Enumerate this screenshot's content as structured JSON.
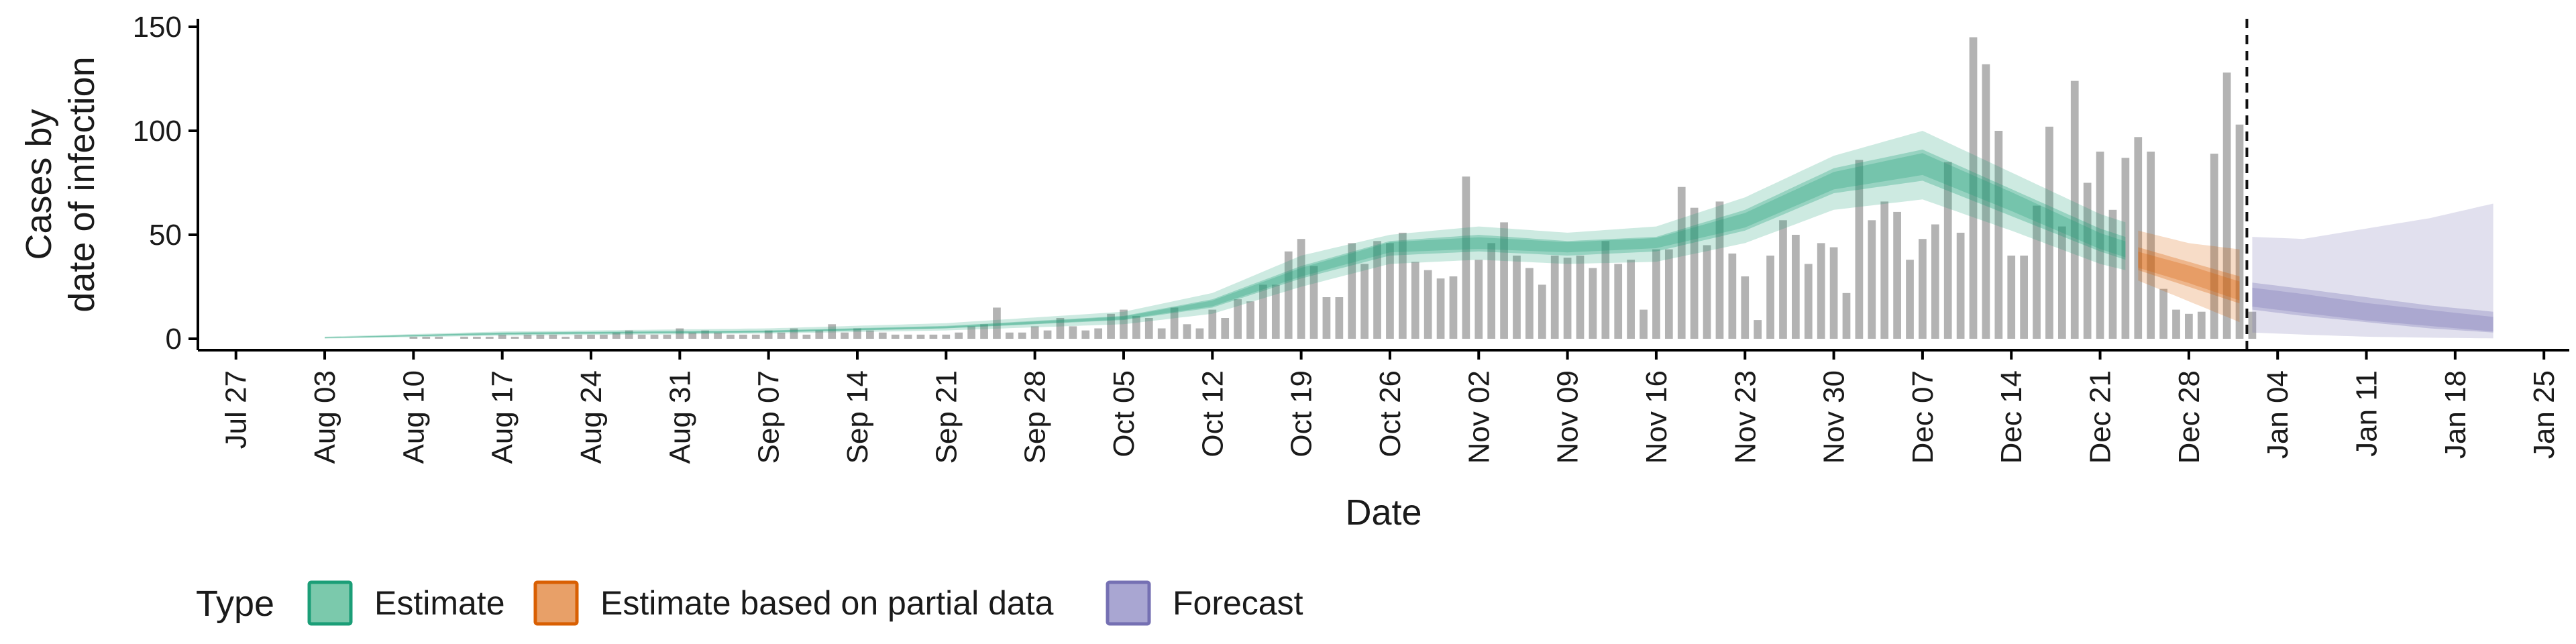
{
  "chart_data": {
    "type": "bar",
    "xlabel": "Date",
    "ylabel_lines": [
      "Cases by",
      "date of infection"
    ],
    "ylim": [
      0,
      150
    ],
    "yticks": [
      0,
      50,
      100,
      150
    ],
    "x_domain": [
      "2020-07-24",
      "2021-01-27"
    ],
    "x_ticks": [
      {
        "date": "2020-07-27",
        "label": "Jul 27"
      },
      {
        "date": "2020-08-03",
        "label": "Aug 03"
      },
      {
        "date": "2020-08-10",
        "label": "Aug 10"
      },
      {
        "date": "2020-08-17",
        "label": "Aug 17"
      },
      {
        "date": "2020-08-24",
        "label": "Aug 24"
      },
      {
        "date": "2020-08-31",
        "label": "Aug 31"
      },
      {
        "date": "2020-09-07",
        "label": "Sep 07"
      },
      {
        "date": "2020-09-14",
        "label": "Sep 14"
      },
      {
        "date": "2020-09-21",
        "label": "Sep 21"
      },
      {
        "date": "2020-09-28",
        "label": "Sep 28"
      },
      {
        "date": "2020-10-05",
        "label": "Oct 05"
      },
      {
        "date": "2020-10-12",
        "label": "Oct 12"
      },
      {
        "date": "2020-10-19",
        "label": "Oct 19"
      },
      {
        "date": "2020-10-26",
        "label": "Oct 26"
      },
      {
        "date": "2020-11-02",
        "label": "Nov 02"
      },
      {
        "date": "2020-11-09",
        "label": "Nov 09"
      },
      {
        "date": "2020-11-16",
        "label": "Nov 16"
      },
      {
        "date": "2020-11-23",
        "label": "Nov 23"
      },
      {
        "date": "2020-11-30",
        "label": "Nov 30"
      },
      {
        "date": "2020-12-07",
        "label": "Dec 07"
      },
      {
        "date": "2020-12-14",
        "label": "Dec 14"
      },
      {
        "date": "2020-12-21",
        "label": "Dec 21"
      },
      {
        "date": "2020-12-28",
        "label": "Dec 28"
      },
      {
        "date": "2021-01-04",
        "label": "Jan 04"
      },
      {
        "date": "2021-01-11",
        "label": "Jan 11"
      },
      {
        "date": "2021-01-18",
        "label": "Jan 18"
      },
      {
        "date": "2021-01-25",
        "label": "Jan 25"
      }
    ],
    "forecast_start": "2021-01-02",
    "bars": {
      "start_date": "2020-08-03",
      "values": [
        0,
        0,
        0,
        0,
        0,
        0,
        0,
        1,
        1,
        1,
        0,
        1,
        1,
        1,
        2,
        1,
        2,
        2,
        2,
        1,
        2,
        2,
        2,
        3,
        4,
        2,
        2,
        2,
        5,
        3,
        4,
        3,
        2,
        2,
        2,
        4,
        3,
        5,
        2,
        4,
        7,
        3,
        5,
        4,
        3,
        2,
        2,
        2,
        2,
        2,
        3,
        6,
        7,
        15,
        3,
        3,
        6,
        4,
        10,
        6,
        4,
        5,
        12,
        14,
        11,
        10,
        5,
        15,
        7,
        5,
        14,
        10,
        19,
        18,
        26,
        26,
        42,
        48,
        35,
        20,
        20,
        46,
        36,
        47,
        46,
        51,
        37,
        33,
        29,
        30,
        78,
        38,
        46,
        56,
        40,
        34,
        26,
        40,
        39,
        40,
        34,
        47,
        36,
        38,
        14,
        43,
        43,
        73,
        63,
        45,
        66,
        41,
        30,
        9,
        40,
        57,
        50,
        36,
        46,
        44,
        22,
        86,
        57,
        66,
        61,
        38,
        48,
        55,
        85,
        51,
        145,
        132,
        100,
        40,
        40,
        64,
        102,
        54,
        124,
        75,
        90,
        62,
        87,
        97,
        90,
        24,
        14,
        12,
        13,
        89,
        128,
        103,
        13
      ],
      "color": "#b3b3b3"
    },
    "series": [
      {
        "name": "Estimate",
        "color": "#1b9e77",
        "start_date": "2020-08-03",
        "end_date": "2020-12-23",
        "knots": [
          {
            "date": "2020-08-03",
            "median": 0.5,
            "q25": 0.3,
            "q75": 0.7,
            "q5": 0.1,
            "q95": 1.0
          },
          {
            "date": "2020-08-17",
            "median": 2.5,
            "q25": 2.0,
            "q75": 3.0,
            "q5": 1.5,
            "q95": 3.5
          },
          {
            "date": "2020-09-07",
            "median": 3.5,
            "q25": 3.0,
            "q75": 4.0,
            "q5": 2.5,
            "q95": 5.0
          },
          {
            "date": "2020-09-21",
            "median": 5.5,
            "q25": 5.0,
            "q75": 6.2,
            "q5": 4.0,
            "q95": 7.5
          },
          {
            "date": "2020-10-05",
            "median": 10,
            "q25": 9,
            "q75": 11,
            "q5": 7,
            "q95": 13
          },
          {
            "date": "2020-10-12",
            "median": 17,
            "q25": 15,
            "q75": 19,
            "q5": 12,
            "q95": 22
          },
          {
            "date": "2020-10-19",
            "median": 32,
            "q25": 29,
            "q75": 35,
            "q5": 25,
            "q95": 40
          },
          {
            "date": "2020-10-26",
            "median": 44,
            "q25": 40,
            "q75": 47,
            "q5": 36,
            "q95": 50
          },
          {
            "date": "2020-11-02",
            "median": 46,
            "q25": 42,
            "q75": 50,
            "q5": 38,
            "q95": 54
          },
          {
            "date": "2020-11-09",
            "median": 44,
            "q25": 40,
            "q75": 47,
            "q5": 36,
            "q95": 51
          },
          {
            "date": "2020-11-16",
            "median": 46,
            "q25": 42,
            "q75": 49,
            "q5": 37,
            "q95": 54
          },
          {
            "date": "2020-11-23",
            "median": 57,
            "q25": 52,
            "q75": 62,
            "q5": 46,
            "q95": 68
          },
          {
            "date": "2020-11-30",
            "median": 76,
            "q25": 70,
            "q75": 82,
            "q5": 62,
            "q95": 88
          },
          {
            "date": "2020-12-07",
            "median": 84,
            "q25": 76,
            "q75": 91,
            "q5": 67,
            "q95": 100
          },
          {
            "date": "2020-12-14",
            "median": 66,
            "q25": 59,
            "q75": 72,
            "q5": 52,
            "q95": 80
          },
          {
            "date": "2020-12-21",
            "median": 47,
            "q25": 42,
            "q75": 53,
            "q5": 36,
            "q95": 60
          },
          {
            "date": "2020-12-23",
            "median": 43,
            "q25": 38,
            "q75": 49,
            "q5": 33,
            "q95": 56
          }
        ]
      },
      {
        "name": "Estimate based on partial data",
        "color": "#d95f02",
        "start_date": "2020-12-24",
        "end_date": "2021-01-01",
        "knots": [
          {
            "date": "2020-12-24",
            "median": 38,
            "q25": 33,
            "q75": 44,
            "q5": 28,
            "q95": 52
          },
          {
            "date": "2020-12-28",
            "median": 31,
            "q25": 25,
            "q75": 37,
            "q5": 18,
            "q95": 46
          },
          {
            "date": "2021-01-01",
            "median": 23,
            "q25": 17,
            "q75": 30,
            "q5": 8,
            "q95": 43
          }
        ]
      },
      {
        "name": "Forecast",
        "color": "#7570b3",
        "start_date": "2021-01-02",
        "end_date": "2021-01-21",
        "knots": [
          {
            "date": "2021-01-02",
            "median": 20,
            "q25": 14,
            "q75": 27,
            "q5": 3,
            "q95": 49
          },
          {
            "date": "2021-01-06",
            "median": 17,
            "q25": 11,
            "q75": 24,
            "q5": 2,
            "q95": 48
          },
          {
            "date": "2021-01-11",
            "median": 13,
            "q25": 8,
            "q75": 20,
            "q5": 1,
            "q95": 53
          },
          {
            "date": "2021-01-16",
            "median": 10,
            "q25": 5,
            "q75": 16,
            "q5": 0.5,
            "q95": 58
          },
          {
            "date": "2021-01-21",
            "median": 7,
            "q25": 3,
            "q75": 13,
            "q5": 0.2,
            "q95": 65
          }
        ]
      }
    ],
    "legend": {
      "title": "Type",
      "position": "bottom",
      "items": [
        {
          "label": "Estimate",
          "color": "#1b9e77",
          "fill": "#7bc9ac"
        },
        {
          "label": "Estimate based on partial data",
          "color": "#d95f02",
          "fill": "#e8a068"
        },
        {
          "label": "Forecast",
          "color": "#7570b3",
          "fill": "#a9a6d2"
        }
      ]
    },
    "grid": false
  }
}
